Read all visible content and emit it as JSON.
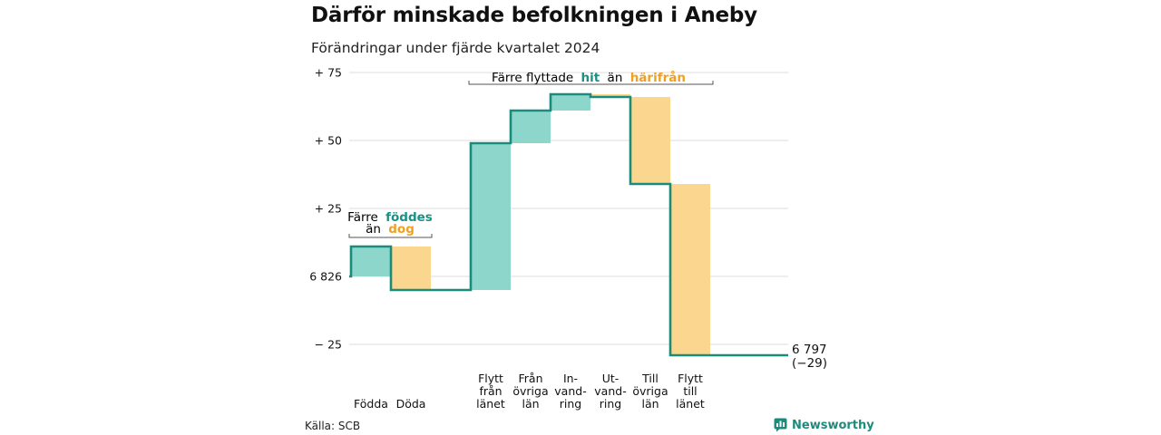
{
  "header": {
    "title": "Därför minskade befolkningen i Aneby",
    "subtitle": "Förändringar under fjärde kvartalet 2024"
  },
  "footer": {
    "source": "Källa: SCB",
    "brand": "Newsworthy",
    "brand_icon": "newsworthy-logo-icon"
  },
  "colors": {
    "increase": "#8dd6cc",
    "decrease": "#fbd68f",
    "line": "#1a8c7c",
    "hit_text": "#1a9184",
    "away_text": "#f0a020",
    "grid": "#dddddd"
  },
  "chart_data": {
    "type": "bar",
    "subtype": "waterfall",
    "title": "Därför minskade befolkningen i Aneby",
    "subtitle": "Förändringar under fjärde kvartalet 2024",
    "start_value": 6826,
    "end_value": 6797,
    "change_total": -29,
    "end_label_value": "6 797",
    "end_label_change": "(−29)",
    "yaxis": {
      "ylim": [
        -29,
        75
      ],
      "ticks": [
        {
          "value": 75,
          "label": "+ 75"
        },
        {
          "value": 50,
          "label": "+ 50"
        },
        {
          "value": 25,
          "label": "+ 25"
        },
        {
          "value": 0,
          "label": "6 826"
        },
        {
          "value": -25,
          "label": "− 25"
        }
      ]
    },
    "categories": [
      {
        "lines": [
          "Födda"
        ],
        "value": 11,
        "direction": "increase"
      },
      {
        "lines": [
          "Döda"
        ],
        "value": -16,
        "direction": "decrease"
      },
      {
        "lines": [
          "Flytt",
          "från",
          "länet"
        ],
        "value": 54,
        "direction": "increase"
      },
      {
        "lines": [
          "Från",
          "övriga",
          "län"
        ],
        "value": 12,
        "direction": "increase"
      },
      {
        "lines": [
          "In-",
          "vand-",
          "ring"
        ],
        "value": 6,
        "direction": "increase"
      },
      {
        "lines": [
          "Ut-",
          "vand-",
          "ring"
        ],
        "value": -1,
        "direction": "decrease"
      },
      {
        "lines": [
          "Till",
          "övriga",
          "län"
        ],
        "value": -32,
        "direction": "decrease"
      },
      {
        "lines": [
          "Flytt",
          "till",
          "länet"
        ],
        "value": -63,
        "direction": "decrease"
      }
    ],
    "annotations": [
      {
        "pre": "Färre",
        "highlight_a": "föddes",
        "mid": "än",
        "highlight_b": "dog"
      },
      {
        "pre": "Färre flyttade",
        "highlight_a": "hit",
        "mid": "än",
        "highlight_b": "härifrån"
      }
    ],
    "grid": true,
    "legend": "none"
  }
}
